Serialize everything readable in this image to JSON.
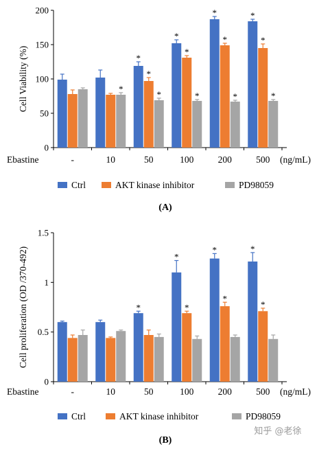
{
  "colors": {
    "ctrl": "#4472C4",
    "akt": "#ED7D31",
    "pd": "#A5A5A5"
  },
  "legend": [
    "Ctrl",
    "AKT kinase inhibitor",
    "PD98059"
  ],
  "watermark": "知乎 @老徐",
  "chart_data": [
    {
      "type": "bar",
      "panel_label": "(A)",
      "ylabel": "Cell Viability (%)",
      "xlabel_left": "Ebastine",
      "xlabel_right": "(ng/mL)",
      "categories": [
        "-",
        "10",
        "50",
        "100",
        "200",
        "500"
      ],
      "ylim": [
        0,
        200
      ],
      "yticks": [
        0,
        50,
        100,
        150,
        200
      ],
      "ytick_labels": [
        "0",
        "50",
        "100",
        "150",
        "200"
      ],
      "legend_placement": "bottom",
      "series": [
        {
          "name": "Ctrl",
          "values": [
            99,
            102,
            119,
            152,
            187,
            184
          ],
          "errors": [
            8,
            11,
            6,
            5,
            4,
            3
          ],
          "significant": [
            false,
            false,
            true,
            true,
            true,
            true
          ]
        },
        {
          "name": "AKT kinase inhibitor",
          "values": [
            78,
            77,
            97,
            131,
            149,
            145
          ],
          "errors": [
            6,
            2,
            5,
            3,
            3,
            6
          ],
          "significant": [
            false,
            false,
            true,
            true,
            true,
            true
          ]
        },
        {
          "name": "PD98059",
          "values": [
            85,
            77,
            69,
            68,
            67,
            68
          ],
          "errors": [
            2,
            3,
            3,
            2,
            2,
            2
          ],
          "significant": [
            false,
            true,
            true,
            true,
            true,
            true
          ]
        }
      ]
    },
    {
      "type": "bar",
      "panel_label": "(B)",
      "ylabel": "Cell proliferation (OD /370-492)",
      "xlabel_left": "Ebastine",
      "xlabel_right": "(ng/mL)",
      "categories": [
        "-",
        "10",
        "50",
        "100",
        "200",
        "500"
      ],
      "ylim": [
        0,
        1.5
      ],
      "yticks": [
        0,
        0.5,
        1,
        1.5
      ],
      "ytick_labels": [
        "0",
        "0.5",
        "1",
        "1.5"
      ],
      "legend_placement": "bottom",
      "series": [
        {
          "name": "Ctrl",
          "values": [
            0.6,
            0.6,
            0.69,
            1.1,
            1.24,
            1.21
          ],
          "errors": [
            0.01,
            0.02,
            0.02,
            0.12,
            0.05,
            0.09
          ],
          "significant": [
            false,
            false,
            true,
            true,
            true,
            true
          ]
        },
        {
          "name": "AKT kinase inhibitor",
          "values": [
            0.44,
            0.44,
            0.47,
            0.69,
            0.76,
            0.71
          ],
          "errors": [
            0.03,
            0.01,
            0.05,
            0.02,
            0.04,
            0.03
          ],
          "significant": [
            false,
            false,
            false,
            true,
            true,
            true
          ]
        },
        {
          "name": "PD98059",
          "values": [
            0.47,
            0.51,
            0.45,
            0.43,
            0.45,
            0.43
          ],
          "errors": [
            0.05,
            0.01,
            0.03,
            0.03,
            0.02,
            0.04
          ],
          "significant": [
            false,
            false,
            false,
            false,
            false,
            false
          ]
        }
      ]
    }
  ]
}
